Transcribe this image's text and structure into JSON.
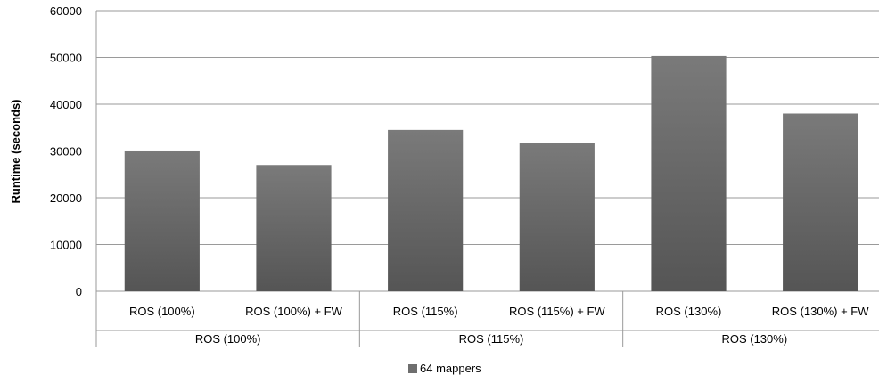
{
  "chart_data": {
    "type": "bar",
    "ylabel": "Runtime (seconds)",
    "ylim": [
      0,
      60000
    ],
    "yticks": [
      0,
      10000,
      20000,
      30000,
      40000,
      50000,
      60000
    ],
    "grid": true,
    "legend_position": "bottom",
    "categories": [
      "ROS (100%)",
      "ROS (100%) + FW",
      "ROS (115%)",
      "ROS (115%) + FW",
      "ROS (130%)",
      "ROS (130%) + FW"
    ],
    "groups": [
      {
        "label": "ROS (100%)",
        "span": 2
      },
      {
        "label": "ROS (115%)",
        "span": 2
      },
      {
        "label": "ROS (130%)",
        "span": 2
      }
    ],
    "series": [
      {
        "name": "64 mappers",
        "color": "#6e6e6e",
        "values": [
          30100,
          27000,
          34500,
          31800,
          50300,
          38000
        ]
      }
    ]
  }
}
